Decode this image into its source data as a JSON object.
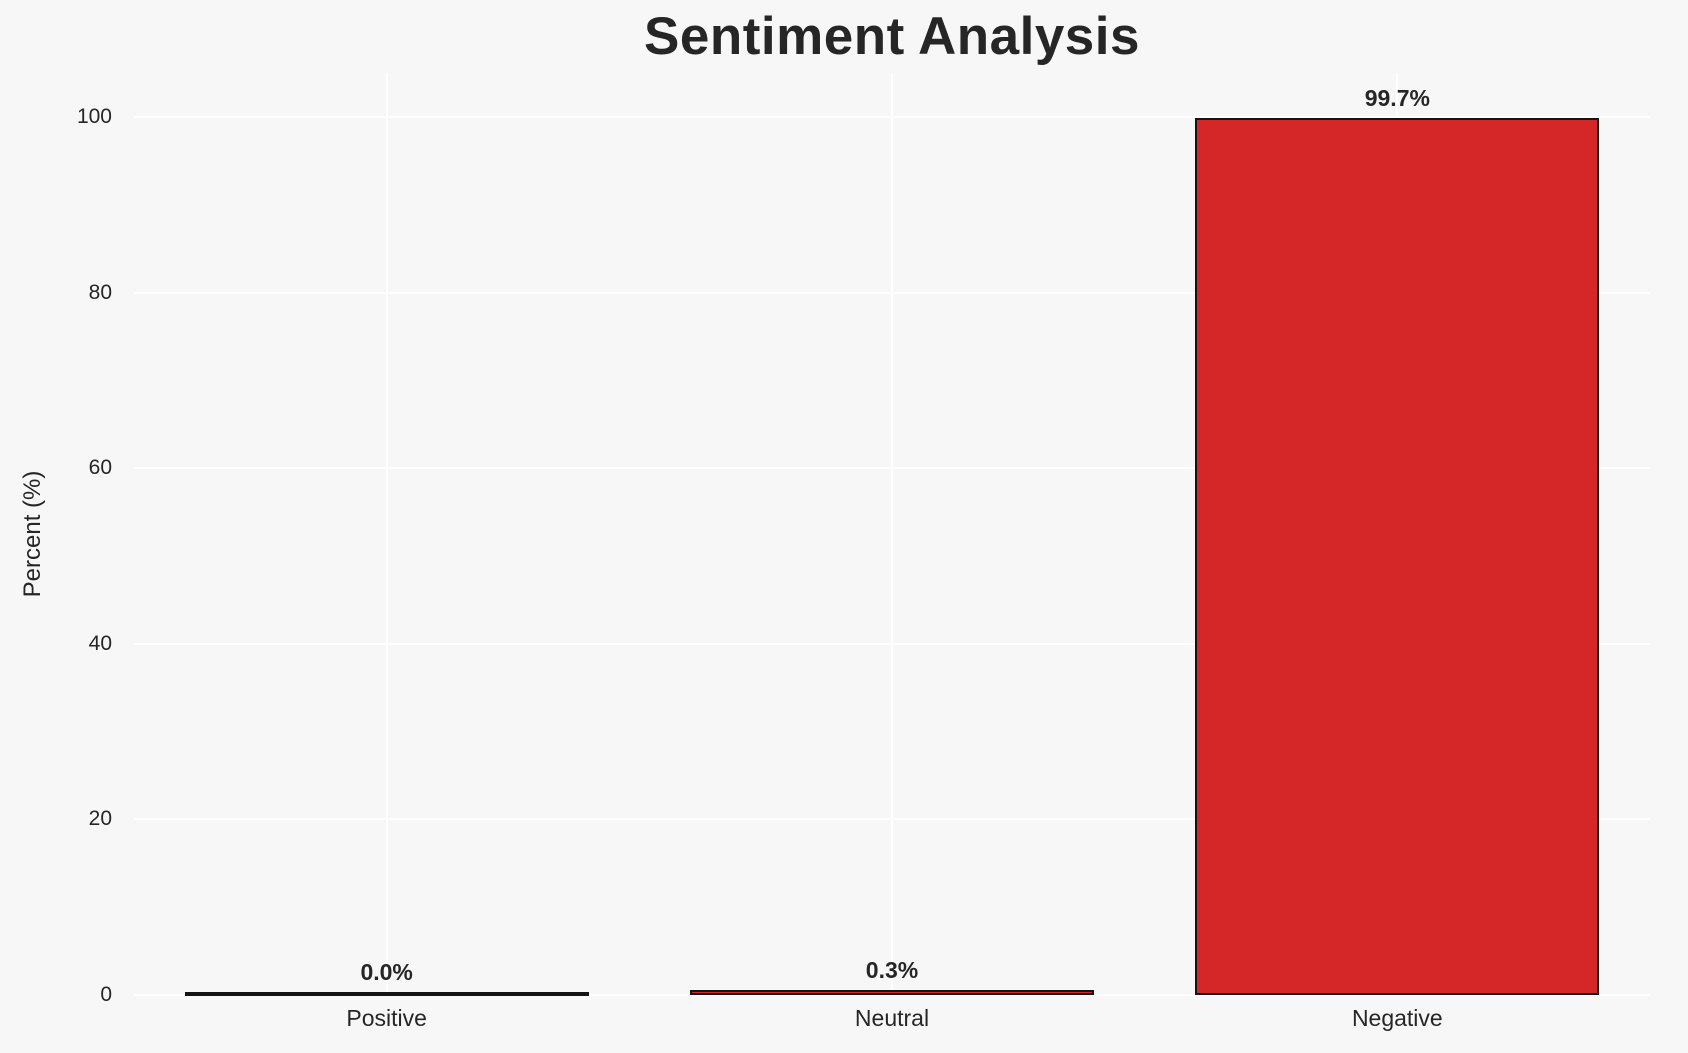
{
  "figure": {
    "title": "Sentiment Analysis",
    "ylabel": "Percent (%)"
  },
  "chart_data": {
    "type": "bar",
    "title": "Sentiment Analysis",
    "xlabel": "",
    "ylabel": "Percent (%)",
    "categories": [
      "Positive",
      "Neutral",
      "Negative"
    ],
    "values": [
      0.0,
      0.3,
      99.7
    ],
    "bar_labels": [
      "0.0%",
      "0.3%",
      "99.7%"
    ],
    "yticks": [
      0,
      20,
      40,
      60,
      80,
      100
    ],
    "ytick_labels": [
      "0",
      "20",
      "40",
      "60",
      "80",
      "100"
    ],
    "ylim": [
      0,
      105
    ],
    "grid": true,
    "legend": false,
    "colors": {
      "bar_fill": "#d62728",
      "bar_edge": "#141414",
      "background": "#f7f7f7",
      "gridline": "#ffffff",
      "text": "#262626"
    }
  }
}
